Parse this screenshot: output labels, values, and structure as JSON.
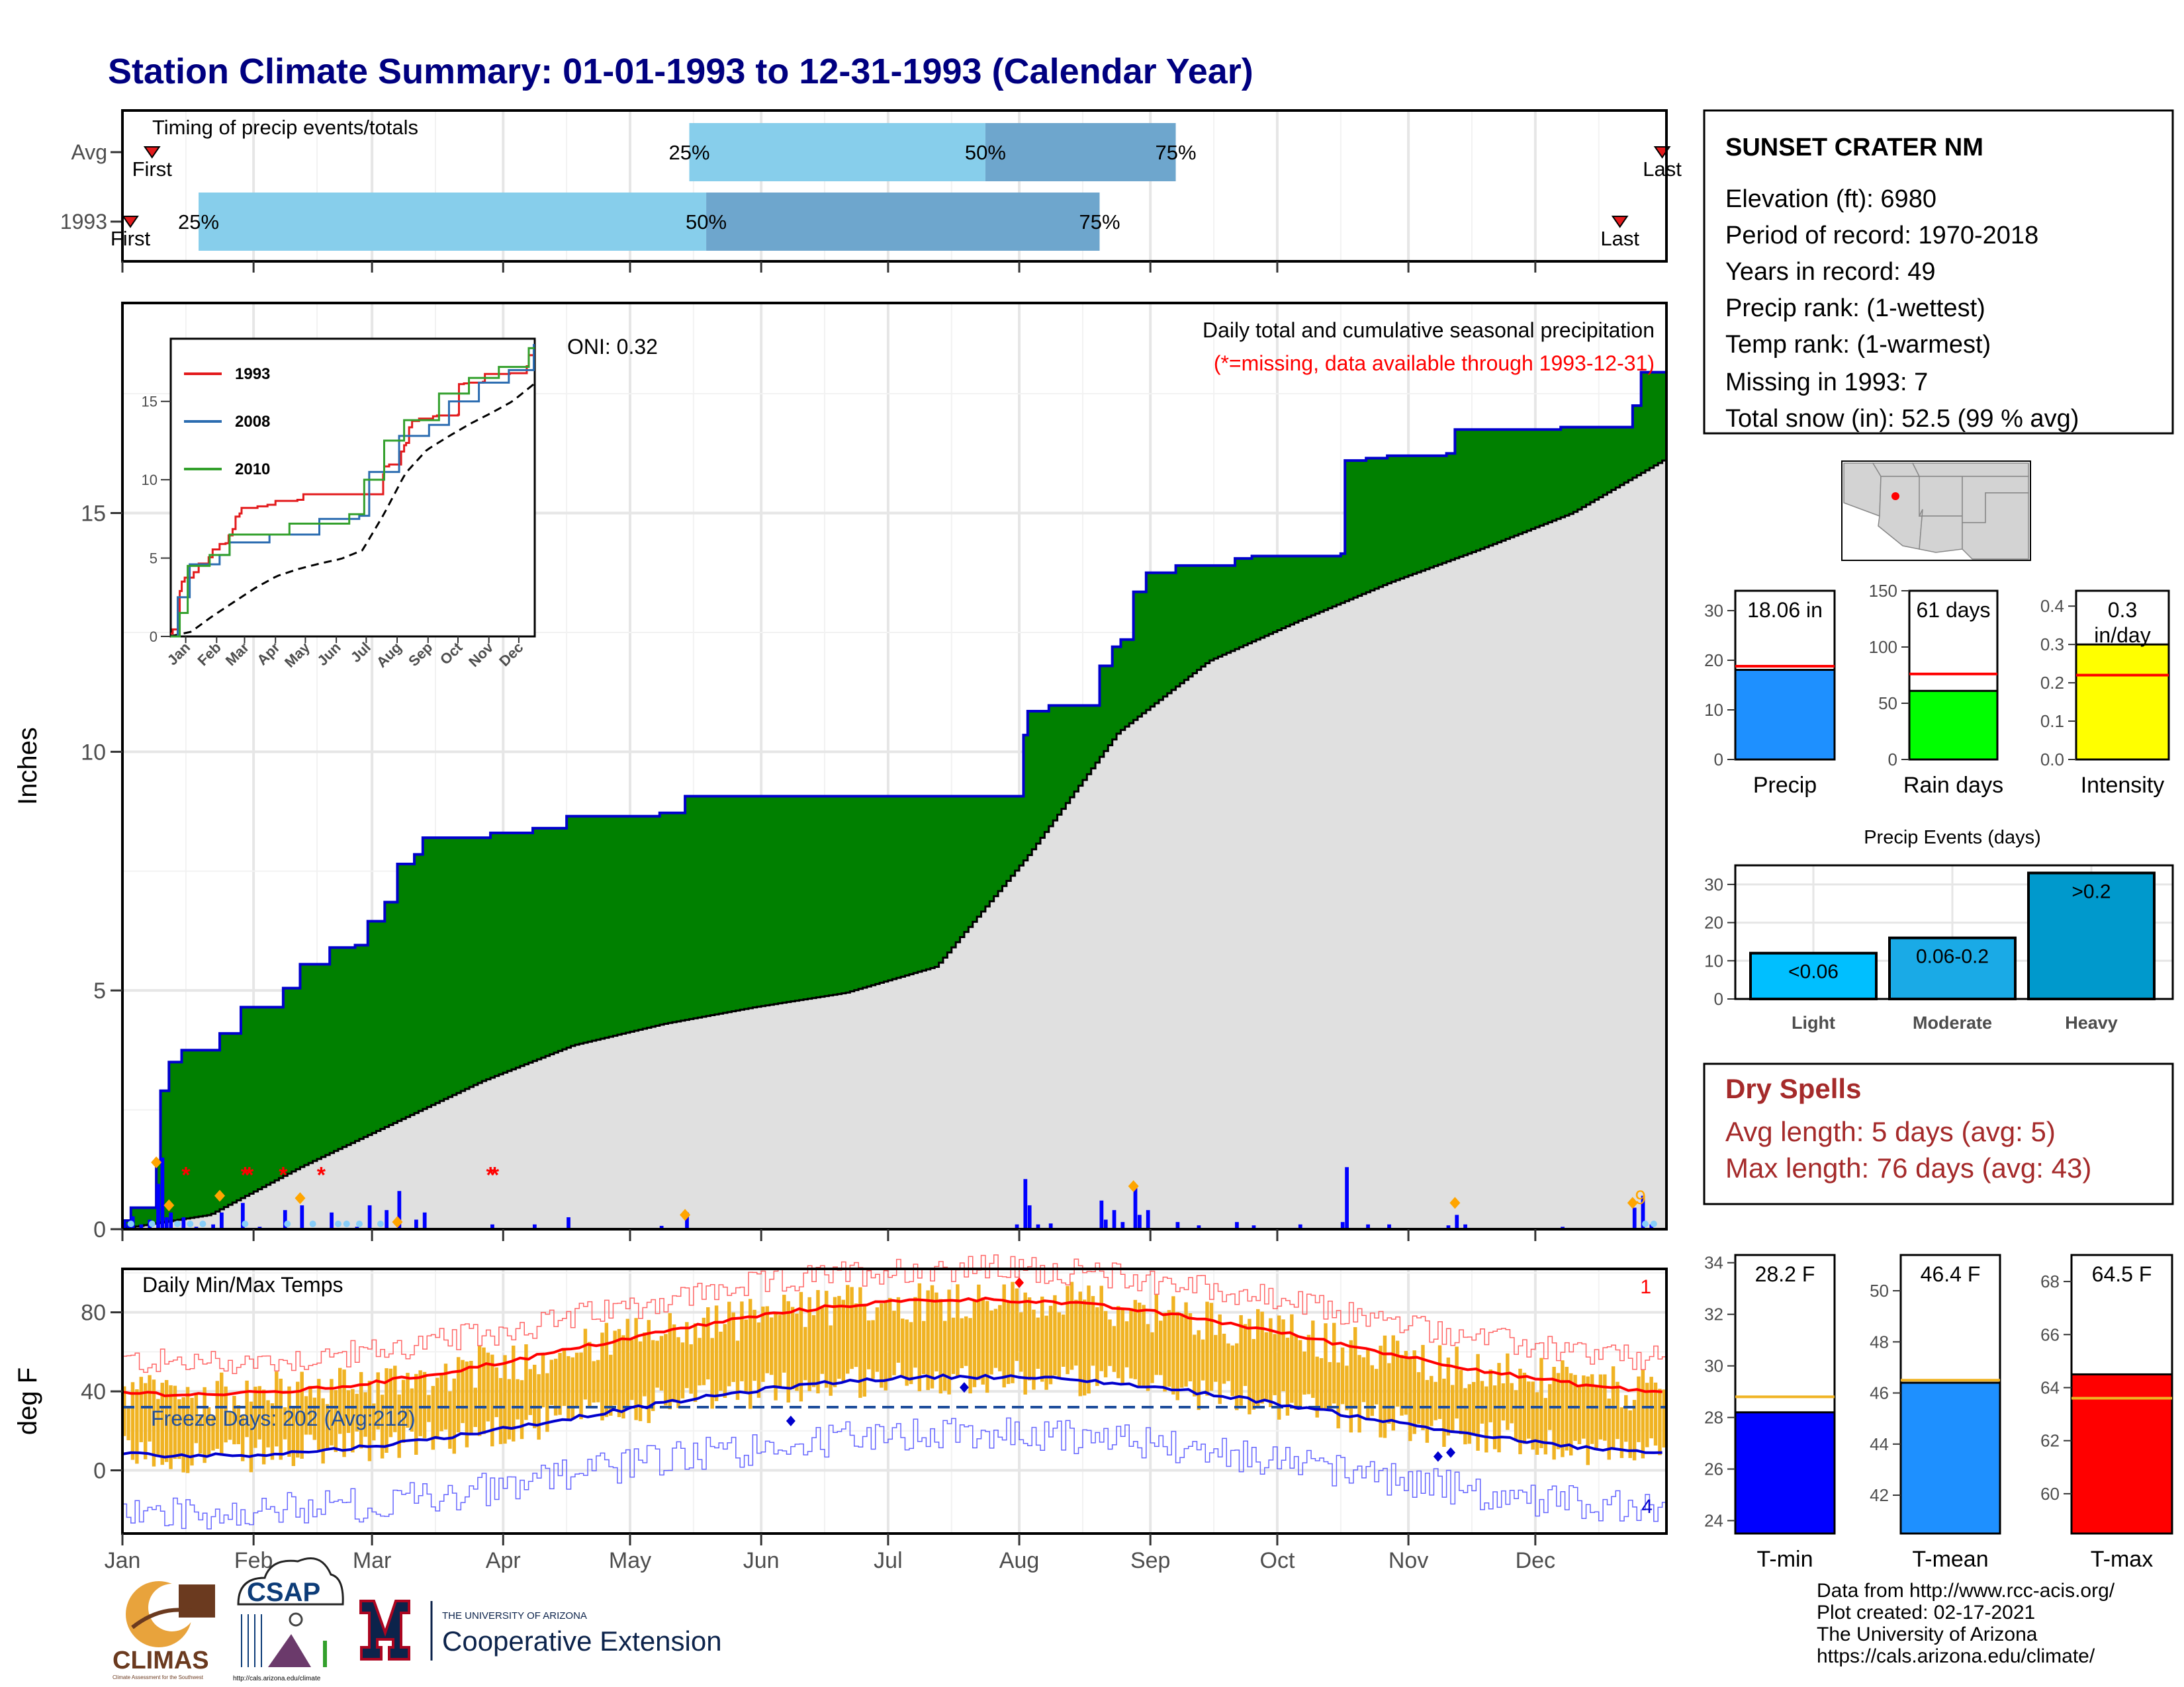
{
  "title": "Station Climate Summary: 01-01-1993 to 12-31-1993 (Calendar Year)",
  "timing_panel": {
    "label": "Timing of precip events/totals",
    "rows": [
      {
        "name": "Avg",
        "first_date": "1993-01-08",
        "last_date": "1993-12-31",
        "p25": "1993-05-15",
        "p50": "1993-07-24",
        "p75": "1993-09-07",
        "labels": {
          "first": "First",
          "last": "Last",
          "p25": "25%",
          "p50": "50%",
          "p75": "75%"
        }
      },
      {
        "name": "1993",
        "first_date": "1993-01-01",
        "last_date": "1993-12-21",
        "p25": "1993-01-19",
        "p50": "1993-05-19",
        "p75": "1993-08-20",
        "labels": {
          "first": "First",
          "last": "Last",
          "p25": "25%",
          "p50": "50%",
          "p75": "75%"
        }
      }
    ],
    "colors": {
      "q1": "#87ceeb",
      "q2": "#6ea6cd",
      "marker": "#e31a1c"
    }
  },
  "precip_panel": {
    "ylabel": "Inches",
    "ylim": [
      0,
      19.4
    ],
    "yticks": [
      0,
      5,
      10,
      15
    ],
    "title_line1": "Daily total and cumulative seasonal precipitation",
    "title_line2": "(*=missing, data available through 1993-12-31)",
    "oni": "ONI: 0.32",
    "snow_count": "9",
    "colors": {
      "above_avg": "#008000",
      "avg_fill": "#e0e0e0",
      "cum_line": "#0000cd",
      "daily_bar": "#0000ff",
      "snow": "#ffa500",
      "missing": "#ff0000"
    }
  },
  "inset_chart": {
    "yticks": [
      0,
      5,
      10,
      15
    ],
    "ylim": [
      0,
      19
    ],
    "months": [
      "Jan",
      "Feb",
      "Mar",
      "Apr",
      "May",
      "Jun",
      "Jul",
      "Aug",
      "Sep",
      "Oct",
      "Nov",
      "Dec"
    ],
    "series": [
      {
        "name": "1993",
        "color": "#e31a1c"
      },
      {
        "name": "2008",
        "color": "#2b6cb0"
      },
      {
        "name": "2010",
        "color": "#33a02c"
      }
    ]
  },
  "temp_panel": {
    "ylabel": "deg F",
    "label": "Daily Min/Max Temps",
    "yticks": [
      0,
      40,
      80
    ],
    "ylim": [
      -32,
      102
    ],
    "freeze_label": "Freeze Days: 202 (Avg:212)",
    "count_high": "1",
    "count_low": "4",
    "colors": {
      "bars": "#f0b323",
      "max_norm": "#ff0000",
      "min_norm": "#0000cd",
      "record_high": "#ff6666",
      "record_low": "#6666ff",
      "freeze": "#1f4e9c"
    }
  },
  "x_months": [
    "Jan",
    "Feb",
    "Mar",
    "Apr",
    "May",
    "Jun",
    "Jul",
    "Aug",
    "Sep",
    "Oct",
    "Nov",
    "Dec"
  ],
  "station_box": {
    "name": "SUNSET CRATER NM",
    "lines": [
      "Elevation (ft): 6980",
      "Period of record: 1970-2018",
      "Years in record: 49",
      "Precip rank:  (1-wettest)",
      "Temp rank:  (1-warmest)",
      "Missing in 1993: 7",
      "Total snow (in): 52.5 (99 % avg)"
    ]
  },
  "summary_bars": [
    {
      "name": "Precip",
      "label": "18.06 in",
      "value": 18.06,
      "avg": 18.8,
      "ylim": [
        0,
        34
      ],
      "yticks": [
        0,
        10,
        20,
        30
      ],
      "color": "#1e90ff"
    },
    {
      "name": "Rain days",
      "label": "61 days",
      "value": 61,
      "avg": 76,
      "ylim": [
        0,
        150
      ],
      "yticks": [
        0,
        50,
        100,
        150
      ],
      "color": "#00ff00"
    },
    {
      "name": "Intensity",
      "label_line1": "0.3",
      "label_line2": "in/day",
      "value": 0.3,
      "avg": 0.22,
      "ylim": [
        0,
        0.44
      ],
      "yticks": [
        "0.0",
        "0.1",
        "0.2",
        "0.3",
        "0.4"
      ],
      "color": "#ffff00"
    }
  ],
  "precip_events": {
    "title": "Precip Events (days)",
    "yticks": [
      0,
      10,
      20,
      30
    ],
    "ylim": [
      0,
      35
    ],
    "categories": [
      "Light",
      "Moderate",
      "Heavy"
    ],
    "labels": [
      "<0.06",
      "0.06-0.2",
      ">0.2"
    ],
    "values": [
      12,
      16,
      33
    ],
    "colors": [
      "#00bfff",
      "#1aaae6",
      "#0099cc"
    ]
  },
  "dry_spells": {
    "title": "Dry Spells",
    "avg_length": "Avg length: 5 days (avg: 5)",
    "max_length": "Max length: 76 days (avg: 43)",
    "color": "#a52a2a"
  },
  "temp_bars": [
    {
      "name": "T-min",
      "label": "28.2 F",
      "value": 28.2,
      "avg": 28.8,
      "ylim": [
        23.5,
        34.3
      ],
      "yticks": [
        24,
        26,
        28,
        30,
        32,
        34
      ],
      "color": "#0000ff"
    },
    {
      "name": "T-mean",
      "label": "46.4 F",
      "value": 46.4,
      "avg": 46.5,
      "ylim": [
        40.5,
        51.4
      ],
      "yticks": [
        42,
        44,
        46,
        48,
        50
      ],
      "color": "#1e90ff"
    },
    {
      "name": "T-max",
      "label": "64.5 F",
      "value": 64.5,
      "avg": 63.6,
      "ylim": [
        58.5,
        69.0
      ],
      "yticks": [
        60,
        62,
        64,
        66,
        68
      ],
      "color": "#ff0000"
    }
  ],
  "logos": {
    "climas": "CLIMAS",
    "climas_sub": "Climate Assessment for the Southwest",
    "csap": "CSAP",
    "csap_url": "http://cals.arizona.edu/climate",
    "ua_small": "THE UNIVERSITY OF ARIZONA",
    "ua_big": "Cooperative Extension"
  },
  "footer": [
    "Data from http://www.rcc-acis.org/",
    "Plot created: 02-17-2021",
    "The University of Arizona",
    "https://cals.arizona.edu/climate/"
  ]
}
